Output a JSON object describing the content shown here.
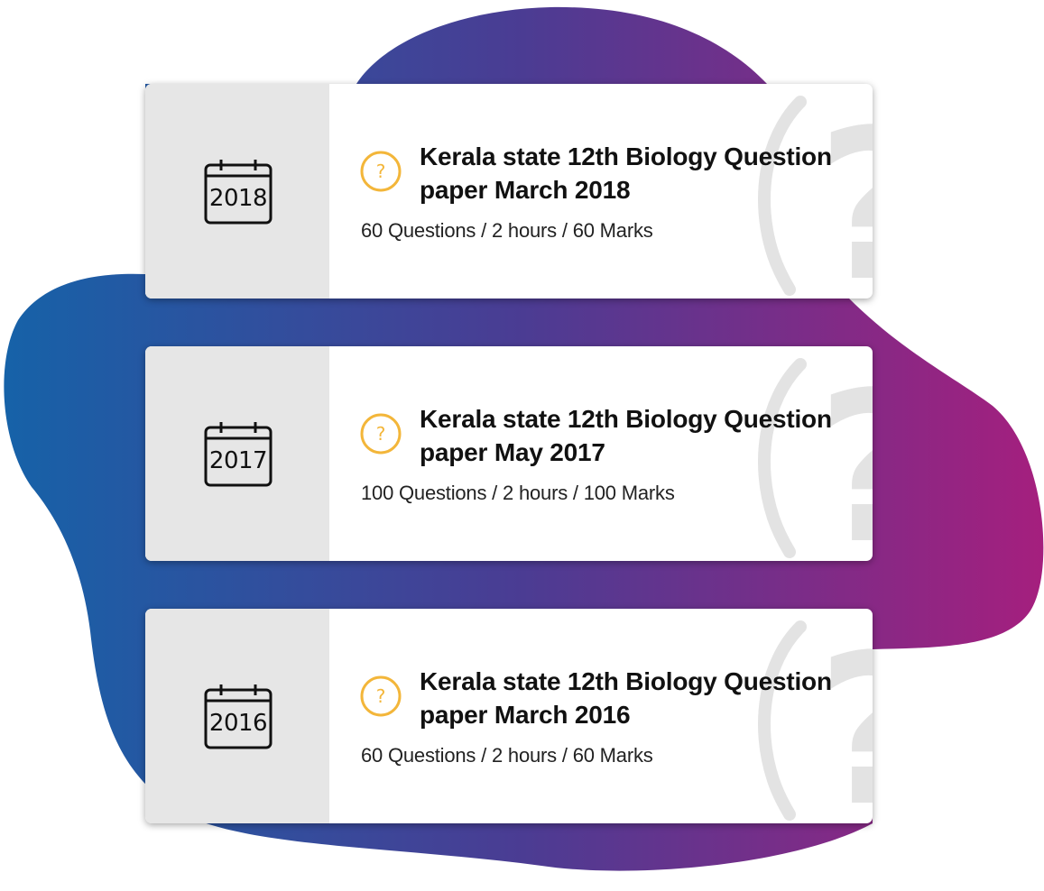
{
  "colors": {
    "blob_start": "#1662a8",
    "blob_mid": "#4b3c93",
    "blob_end": "#a51f7e",
    "badge": "#f3b63a",
    "panel": "#e6e6e6",
    "watermark": "#e2e2e2"
  },
  "cards": [
    {
      "year": "2018",
      "calendar_icon": "calendar-icon",
      "badge_icon": "question-circle-icon",
      "title": "Kerala state 12th Biology Question paper March 2018",
      "meta": "60 Questions / 2 hours / 60 Marks"
    },
    {
      "year": "2017",
      "calendar_icon": "calendar-icon",
      "badge_icon": "question-circle-icon",
      "title": "Kerala state 12th Biology Question paper May 2017",
      "meta": "100 Questions / 2 hours / 100 Marks"
    },
    {
      "year": "2016",
      "calendar_icon": "calendar-icon",
      "badge_icon": "question-circle-icon",
      "title": "Kerala state 12th Biology Question paper March 2016",
      "meta": "60 Questions / 2 hours / 60 Marks"
    }
  ]
}
